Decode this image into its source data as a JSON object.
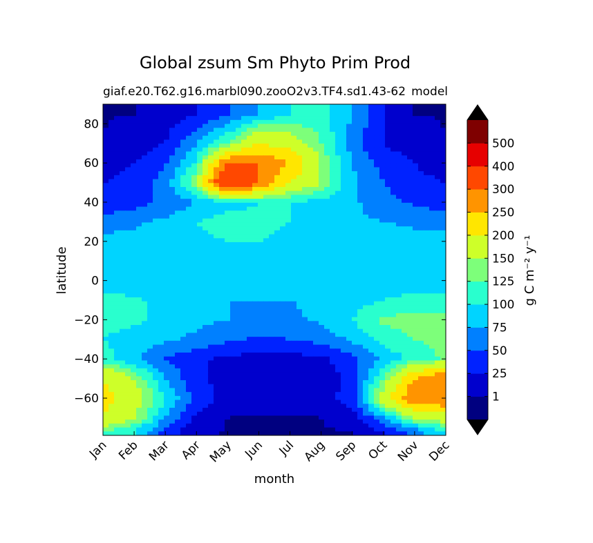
{
  "chart_data": {
    "type": "heatmap",
    "subtype": "filled-contour",
    "title": "Global zsum Sm Phyto Prim Prod",
    "subtitle_left": "giaf.e20.T62.g16.marbl090.zooO2v3.TF4.sd1.43-62",
    "subtitle_right": "model",
    "xlabel": "month",
    "ylabel": "latitude",
    "x_ticks": [
      "Jan",
      "Feb",
      "Mar",
      "Apr",
      "May",
      "Jun",
      "Jul",
      "Aug",
      "Sep",
      "Oct",
      "Nov",
      "Dec"
    ],
    "y_ticks": [
      -60,
      -40,
      -20,
      0,
      20,
      40,
      60,
      80
    ],
    "ylim": [
      -79,
      90
    ],
    "colorbar": {
      "label": "g C m⁻² y⁻¹",
      "levels": [
        0,
        1,
        25,
        50,
        75,
        100,
        125,
        150,
        200,
        250,
        300,
        400,
        500,
        600
      ],
      "tick_labels": [
        "1",
        "25",
        "50",
        "75",
        "100",
        "125",
        "150",
        "200",
        "250",
        "300",
        "400",
        "500"
      ],
      "colors": [
        "#000080",
        "#0000cd",
        "#0022ff",
        "#0080ff",
        "#00d4ff",
        "#29ffce",
        "#7dff7a",
        "#ceff29",
        "#ffe600",
        "#ff9400",
        "#ff4800",
        "#e60000",
        "#7f0000"
      ],
      "under_color": "#000000",
      "over_color": "#000000",
      "extend": "both"
    },
    "approx_values_by_month": {
      "latitudes": [
        85,
        70,
        60,
        50,
        40,
        30,
        20,
        10,
        0,
        -10,
        -20,
        -30,
        -40,
        -50,
        -60,
        -70,
        -77
      ],
      "months": [
        "Jan",
        "Feb",
        "Mar",
        "Apr",
        "May",
        "Jun",
        "Jul",
        "Aug",
        "Sep",
        "Oct",
        "Nov",
        "Dec"
      ],
      "rows": [
        [
          0,
          1,
          10,
          25,
          50,
          75,
          100,
          110,
          75,
          25,
          1,
          0
        ],
        [
          1,
          10,
          25,
          75,
          125,
          200,
          175,
          125,
          60,
          25,
          10,
          1
        ],
        [
          10,
          25,
          50,
          100,
          300,
          300,
          250,
          150,
          75,
          40,
          25,
          15
        ],
        [
          25,
          35,
          60,
          150,
          400,
          300,
          200,
          150,
          80,
          50,
          30,
          25
        ],
        [
          30,
          40,
          55,
          75,
          90,
          100,
          100,
          90,
          80,
          60,
          45,
          35
        ],
        [
          60,
          70,
          80,
          100,
          110,
          105,
          100,
          90,
          80,
          75,
          70,
          65
        ],
        [
          85,
          85,
          90,
          95,
          100,
          100,
          95,
          90,
          85,
          85,
          85,
          85
        ],
        [
          80,
          80,
          80,
          80,
          80,
          80,
          80,
          80,
          80,
          80,
          80,
          80
        ],
        [
          80,
          80,
          80,
          80,
          80,
          80,
          80,
          80,
          80,
          80,
          80,
          80
        ],
        [
          110,
          105,
          90,
          80,
          75,
          75,
          75,
          80,
          90,
          100,
          110,
          110
        ],
        [
          110,
          105,
          90,
          80,
          75,
          70,
          70,
          80,
          100,
          130,
          135,
          135
        ],
        [
          100,
          90,
          80,
          70,
          55,
          45,
          50,
          60,
          80,
          110,
          125,
          130
        ],
        [
          110,
          80,
          50,
          30,
          20,
          15,
          15,
          20,
          40,
          80,
          110,
          130
        ],
        [
          200,
          150,
          75,
          30,
          15,
          10,
          10,
          15,
          30,
          125,
          250,
          300
        ],
        [
          220,
          175,
          100,
          40,
          15,
          5,
          5,
          10,
          40,
          175,
          300,
          300
        ],
        [
          200,
          150,
          75,
          20,
          1,
          0,
          0,
          1,
          10,
          75,
          150,
          175
        ],
        [
          125,
          100,
          40,
          5,
          0,
          0,
          0,
          0,
          1,
          25,
          60,
          100
        ]
      ]
    }
  }
}
